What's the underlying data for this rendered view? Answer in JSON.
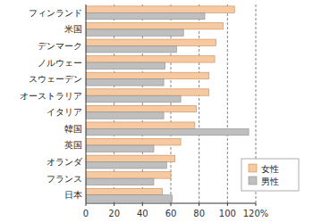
{
  "chart_data": {
    "type": "bar",
    "orientation": "horizontal",
    "categories": [
      "フィンランド",
      "米国",
      "デンマーク",
      "ノルウェー",
      "スウェーデン",
      "オーストラリア",
      "イタリア",
      "韓国",
      "英国",
      "オランダ",
      "フランス",
      "日本"
    ],
    "series": [
      {
        "name": "女性",
        "color": "#f7c9a1",
        "values": [
          105,
          97,
          92,
          91,
          87,
          87,
          78,
          77,
          67,
          63,
          60,
          54
        ]
      },
      {
        "name": "男性",
        "color": "#bfbfbf",
        "values": [
          84,
          69,
          64,
          56,
          55,
          67,
          55,
          115,
          48,
          57,
          48,
          61
        ]
      }
    ],
    "xlim": [
      0,
      120
    ],
    "xticks": [
      0,
      20,
      40,
      60,
      80,
      100,
      {
        "value": 120,
        "label": "120%"
      }
    ],
    "grid": true,
    "legend": "lower right"
  }
}
